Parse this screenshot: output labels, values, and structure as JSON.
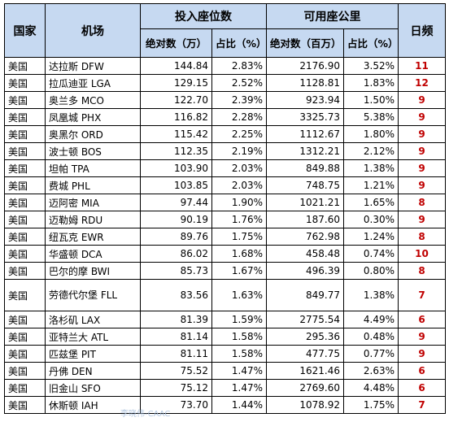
{
  "headers": {
    "country": "国家",
    "airport": "机场",
    "seats_group": "投入座位数",
    "km_group": "可用座公里",
    "seats_abs": "绝对数（万）",
    "seats_share": "占比（%）",
    "km_abs": "绝对数（百万）",
    "km_share": "占比（%）",
    "freq": "日频"
  },
  "rows": [
    {
      "country": "美国",
      "airport": "达拉斯 DFW",
      "seats": "144.84",
      "seats_share": "2.83%",
      "km": "2176.90",
      "km_share": "3.52%",
      "freq": "11"
    },
    {
      "country": "美国",
      "airport": "拉瓜迪亚 LGA",
      "seats": "129.15",
      "seats_share": "2.52%",
      "km": "1128.81",
      "km_share": "1.83%",
      "freq": "12"
    },
    {
      "country": "美国",
      "airport": "奥兰多 MCO",
      "seats": "122.70",
      "seats_share": "2.39%",
      "km": "923.94",
      "km_share": "1.50%",
      "freq": "9"
    },
    {
      "country": "美国",
      "airport": "凤凰城 PHX",
      "seats": "116.82",
      "seats_share": "2.28%",
      "km": "3325.73",
      "km_share": "5.38%",
      "freq": "9"
    },
    {
      "country": "美国",
      "airport": "奥黑尔 ORD",
      "seats": "115.42",
      "seats_share": "2.25%",
      "km": "1112.67",
      "km_share": "1.80%",
      "freq": "9"
    },
    {
      "country": "美国",
      "airport": "波士顿 BOS",
      "seats": "112.35",
      "seats_share": "2.19%",
      "km": "1312.21",
      "km_share": "2.12%",
      "freq": "9"
    },
    {
      "country": "美国",
      "airport": "坦帕 TPA",
      "seats": "103.90",
      "seats_share": "2.03%",
      "km": "849.88",
      "km_share": "1.38%",
      "freq": "9"
    },
    {
      "country": "美国",
      "airport": "费城 PHL",
      "seats": "103.85",
      "seats_share": "2.03%",
      "km": "748.75",
      "km_share": "1.21%",
      "freq": "9"
    },
    {
      "country": "美国",
      "airport": "迈阿密 MIA",
      "seats": "97.44",
      "seats_share": "1.90%",
      "km": "1021.21",
      "km_share": "1.65%",
      "freq": "8"
    },
    {
      "country": "美国",
      "airport": "迈勒姆 RDU",
      "seats": "90.19",
      "seats_share": "1.76%",
      "km": "187.60",
      "km_share": "0.30%",
      "freq": "9"
    },
    {
      "country": "美国",
      "airport": "纽瓦克 EWR",
      "seats": "89.76",
      "seats_share": "1.75%",
      "km": "762.98",
      "km_share": "1.24%",
      "freq": "8"
    },
    {
      "country": "美国",
      "airport": "华盛顿 DCA",
      "seats": "86.02",
      "seats_share": "1.68%",
      "km": "458.48",
      "km_share": "0.74%",
      "freq": "10"
    },
    {
      "country": "美国",
      "airport": "巴尔的摩 BWI",
      "seats": "85.73",
      "seats_share": "1.67%",
      "km": "496.39",
      "km_share": "0.80%",
      "freq": "8"
    },
    {
      "country": "美国",
      "airport": "劳德代尔堡 FLL",
      "seats": "83.56",
      "seats_share": "1.63%",
      "km": "849.77",
      "km_share": "1.38%",
      "freq": "7",
      "tall": true
    },
    {
      "country": "美国",
      "airport": "洛杉矶 LAX",
      "seats": "81.39",
      "seats_share": "1.59%",
      "km": "2775.54",
      "km_share": "4.49%",
      "freq": "6"
    },
    {
      "country": "美国",
      "airport": "亚特兰大 ATL",
      "seats": "81.14",
      "seats_share": "1.58%",
      "km": "295.36",
      "km_share": "0.48%",
      "freq": "9"
    },
    {
      "country": "美国",
      "airport": "匹兹堡 PIT",
      "seats": "81.11",
      "seats_share": "1.58%",
      "km": "477.75",
      "km_share": "0.77%",
      "freq": "9"
    },
    {
      "country": "美国",
      "airport": "丹佛 DEN",
      "seats": "75.52",
      "seats_share": "1.47%",
      "km": "1621.46",
      "km_share": "2.63%",
      "freq": "6"
    },
    {
      "country": "美国",
      "airport": "旧金山 SFO",
      "seats": "75.12",
      "seats_share": "1.47%",
      "km": "2769.60",
      "km_share": "4.48%",
      "freq": "6"
    },
    {
      "country": "美国",
      "airport": "休斯顿 IAH",
      "seats": "73.70",
      "seats_share": "1.44%",
      "km": "1078.92",
      "km_share": "1.75%",
      "freq": "7"
    }
  ],
  "watermark": "李晓伟-CAAC"
}
